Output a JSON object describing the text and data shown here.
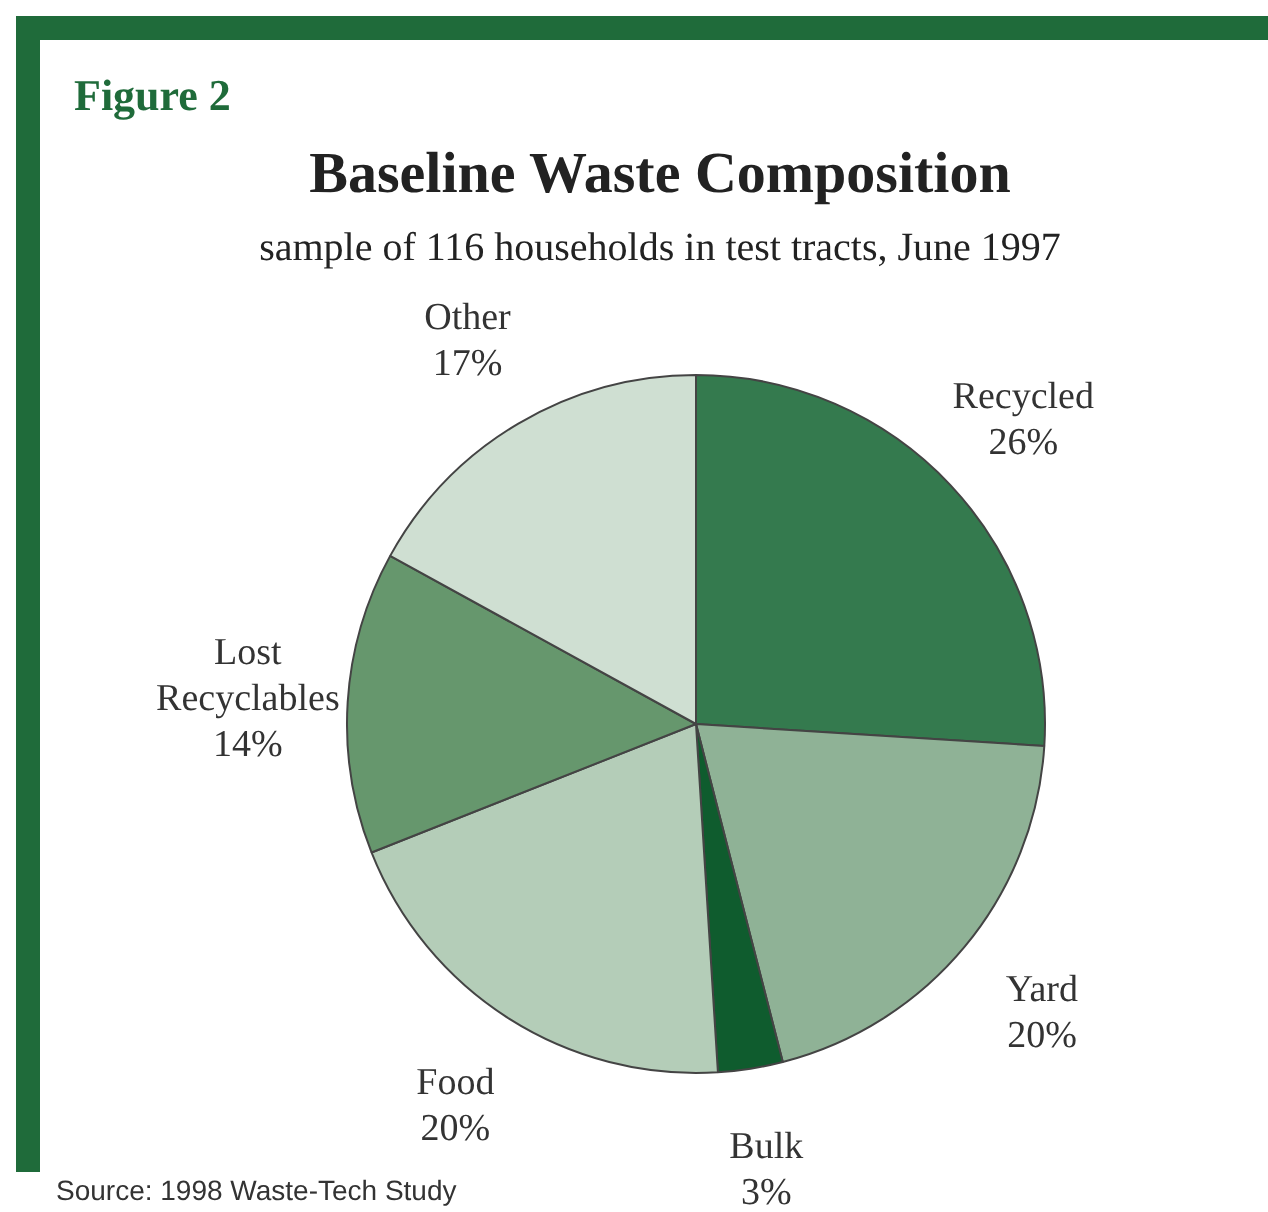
{
  "chart_data": {
    "type": "pie",
    "title": "Baseline Waste Composition",
    "subtitle": "sample of 116 households in test tracts, June 1997",
    "categories": [
      "Recycled",
      "Yard",
      "Bulk",
      "Food",
      "Lost Recyclables",
      "Other"
    ],
    "values": [
      26,
      20,
      3,
      20,
      14,
      17
    ],
    "colors": [
      "#347a4e",
      "#8fb296",
      "#0f5c2e",
      "#b4cdb8",
      "#66976d",
      "#cfdfd2"
    ],
    "value_labels": [
      "26%",
      "20%",
      "3%",
      "20%",
      "14%",
      "17%"
    ],
    "legend": false,
    "annotations": [
      "Figure 2",
      "Source: 1998 Waste-Tech Study"
    ]
  }
}
